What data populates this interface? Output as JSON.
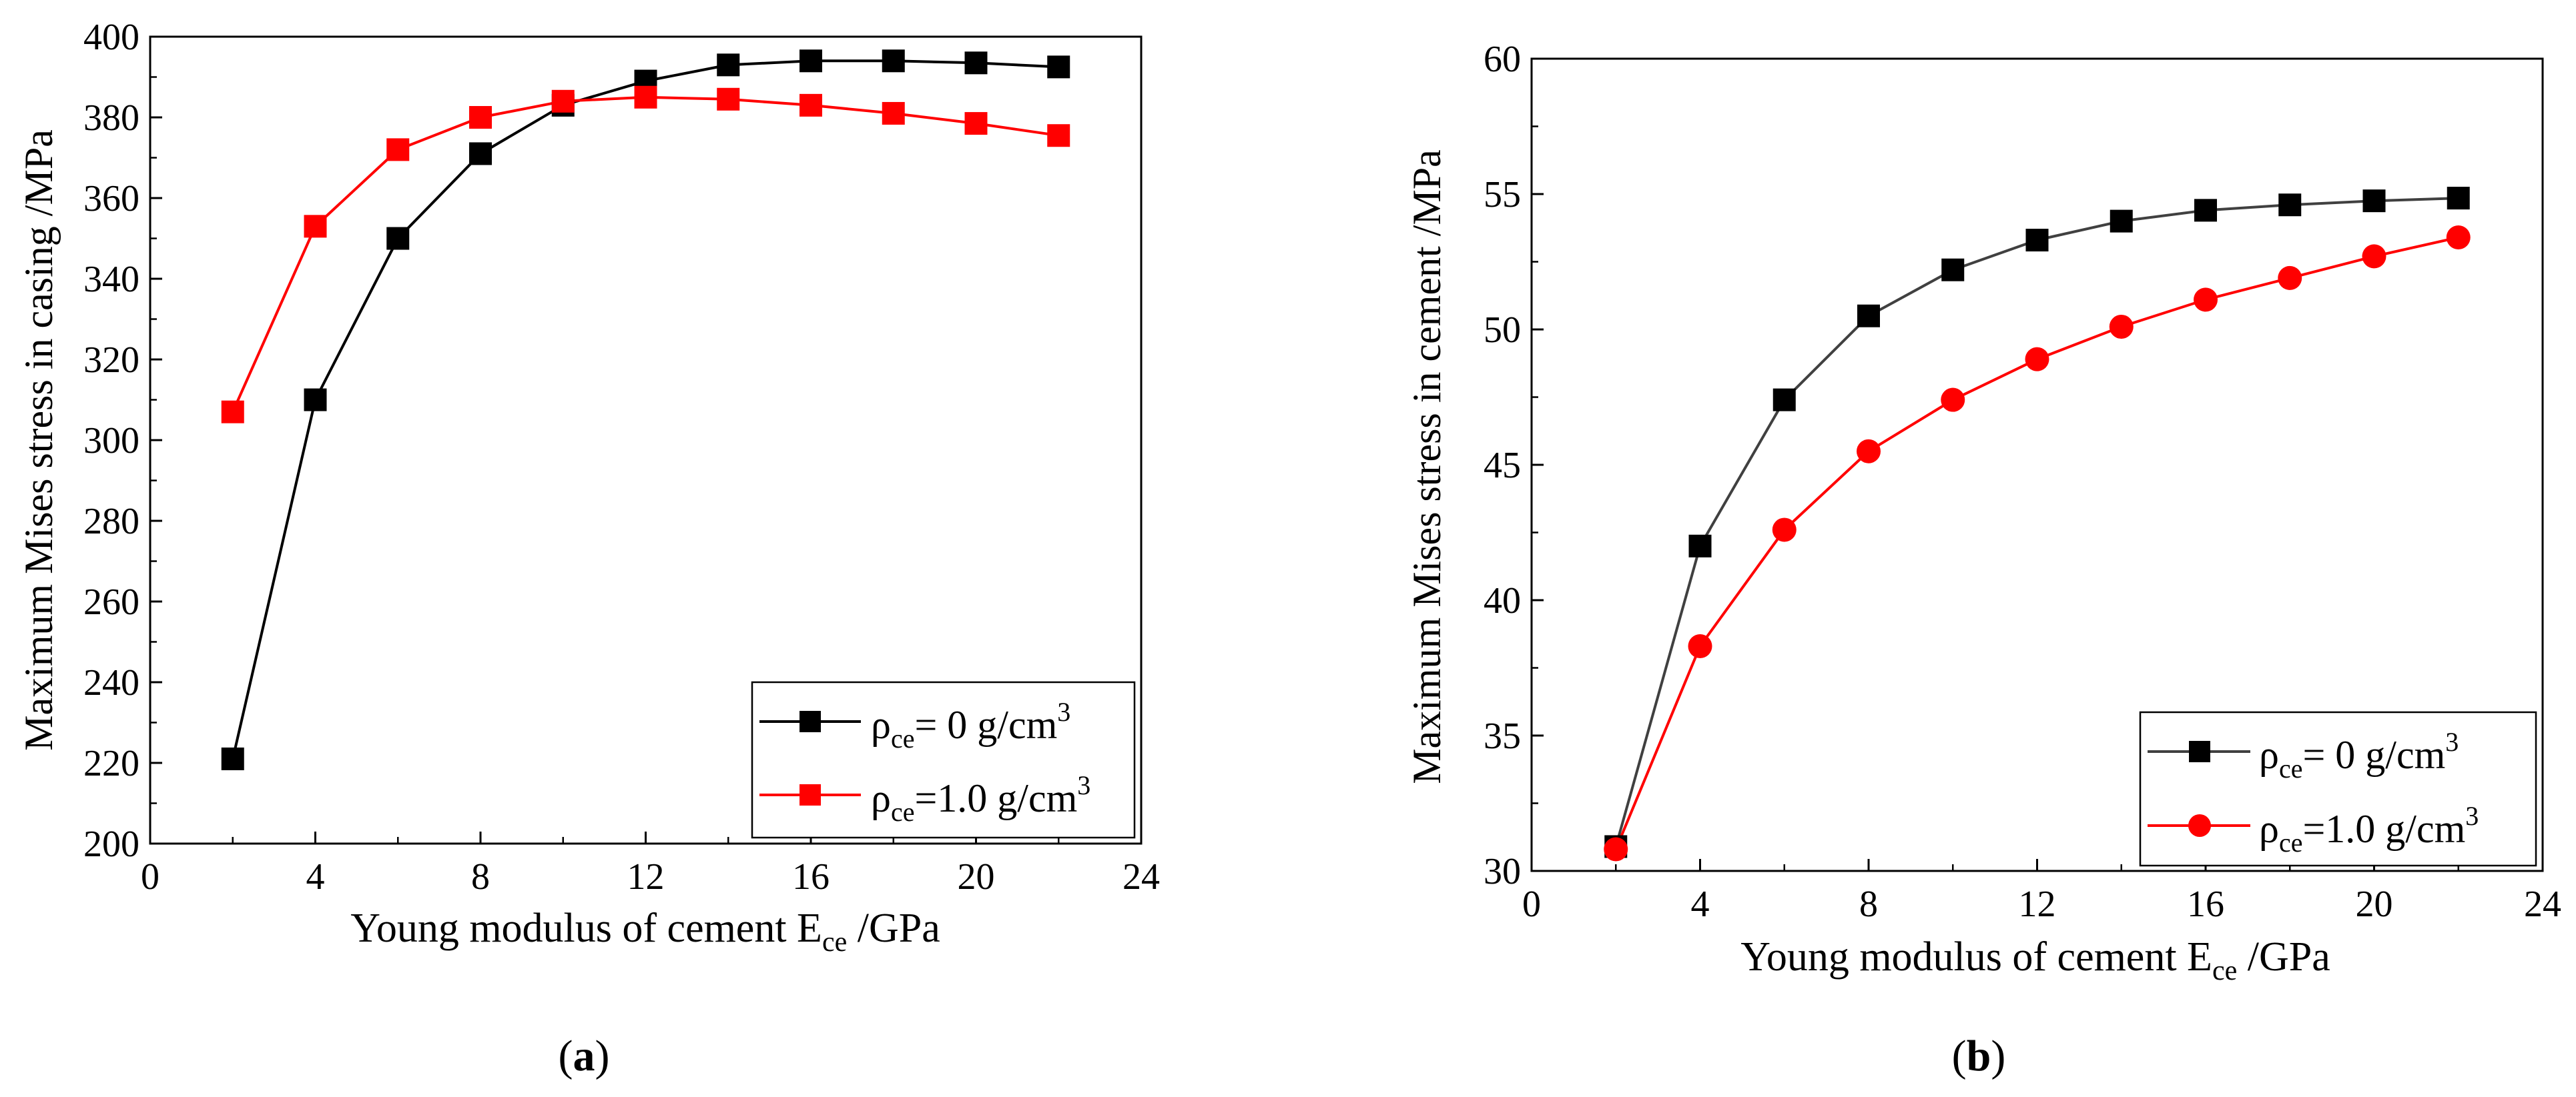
{
  "chart_data": [
    {
      "type": "line",
      "panel_label": "a",
      "xlabel_main": "Young modulus of cement E",
      "xlabel_sub": "ce",
      "xlabel_unit": " /GPa",
      "ylabel": "Maximum Mises stress in casing /MPa",
      "xlim": [
        0,
        24
      ],
      "ylim": [
        200,
        400
      ],
      "xticks": [
        0,
        4,
        8,
        12,
        16,
        20,
        24
      ],
      "yticks": [
        200,
        220,
        240,
        260,
        280,
        300,
        320,
        340,
        360,
        380,
        400
      ],
      "legend_position": "bottom-right",
      "x": [
        2,
        4,
        6,
        8,
        10,
        12,
        14,
        16,
        18,
        20,
        22
      ],
      "series": [
        {
          "name": "ρce= 0 g/cm3",
          "label_rho": "ρ",
          "label_sub": "ce",
          "label_mid": "= 0 g/cm",
          "label_sup": "3",
          "color": "#000000",
          "marker": "square",
          "values": [
            221,
            310,
            350,
            371,
            383,
            389,
            393,
            394,
            394,
            393.5,
            392.5
          ]
        },
        {
          "name": "ρce=1.0 g/cm3",
          "label_rho": "ρ",
          "label_sub": "ce",
          "label_mid": "=1.0 g/cm",
          "label_sup": "3",
          "color": "#ff0000",
          "marker": "square",
          "values": [
            307,
            353,
            372,
            380,
            384,
            385,
            384.5,
            383,
            381,
            378.5,
            375.5
          ]
        }
      ]
    },
    {
      "type": "line",
      "panel_label": "b",
      "xlabel_main": "Young modulus of cement E",
      "xlabel_sub": "ce",
      "xlabel_unit": " /GPa",
      "ylabel": "Maximum Mises stress in cement /MPa",
      "xlim": [
        0,
        24
      ],
      "ylim": [
        30,
        60
      ],
      "xticks": [
        0,
        4,
        8,
        12,
        16,
        20,
        24
      ],
      "yticks": [
        30,
        35,
        40,
        45,
        50,
        55,
        60
      ],
      "legend_position": "bottom-right",
      "x": [
        2,
        4,
        6,
        8,
        10,
        12,
        14,
        16,
        18,
        20,
        22
      ],
      "series": [
        {
          "name": "ρce= 0 g/cm3",
          "label_rho": "ρ",
          "label_sub": "ce",
          "label_mid": "= 0 g/cm",
          "label_sup": "3",
          "color": "#000000",
          "line_color": "#404040",
          "marker": "square",
          "values": [
            30.9,
            42,
            47.4,
            50.5,
            52.2,
            53.3,
            54,
            54.4,
            54.6,
            54.75,
            54.85
          ]
        },
        {
          "name": "ρce=1.0 g/cm3",
          "label_rho": "ρ",
          "label_sub": "ce",
          "label_mid": "=1.0 g/cm",
          "label_sup": "3",
          "color": "#ff0000",
          "marker": "circle",
          "values": [
            30.8,
            38.3,
            42.6,
            45.5,
            47.4,
            48.9,
            50.1,
            51.1,
            51.9,
            52.7,
            53.4
          ]
        }
      ]
    }
  ]
}
